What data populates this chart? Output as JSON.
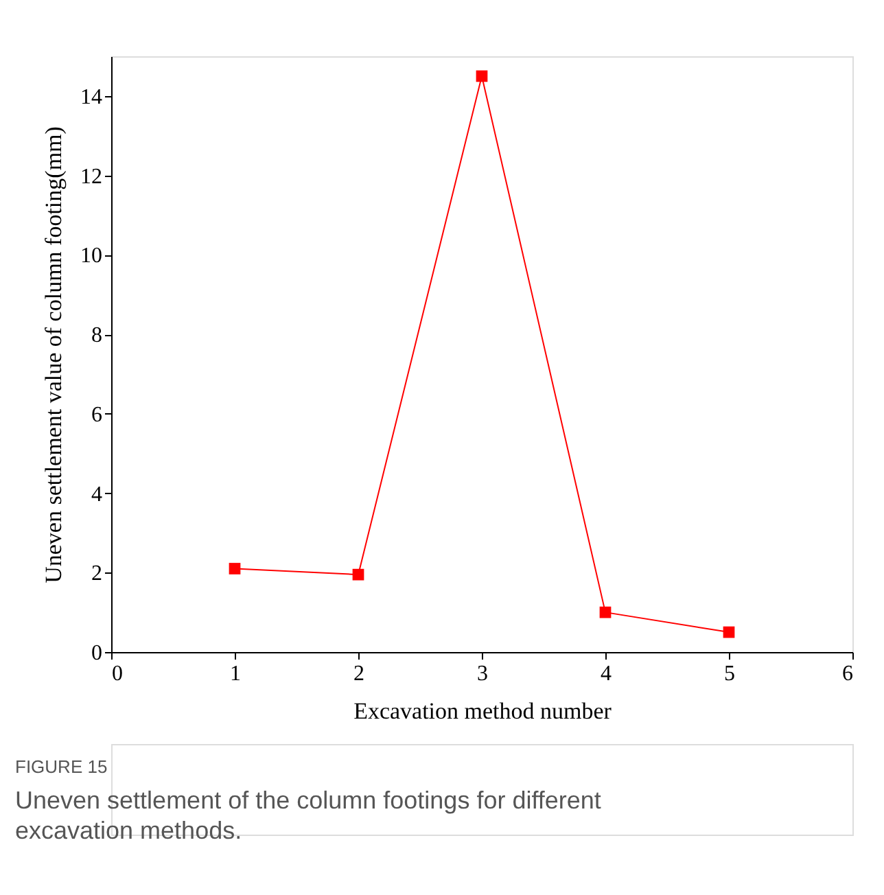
{
  "chart_data": {
    "type": "line",
    "xlabel": "Excavation method number",
    "ylabel": "Uneven settlement value of column footing(mm)",
    "x": [
      1,
      2,
      3,
      4,
      5
    ],
    "series": [
      {
        "color": "#ff0000",
        "values": [
          2.1,
          1.95,
          14.5,
          1.0,
          0.5
        ]
      }
    ],
    "xlim": [
      0,
      6
    ],
    "xticks": [
      0,
      1,
      2,
      3,
      4,
      5,
      6
    ],
    "ylim": [
      0,
      15
    ],
    "yticks": [
      0,
      2,
      4,
      6,
      8,
      10,
      12,
      14
    ],
    "marker": "square",
    "line_style": "solid",
    "grid": false,
    "legend": false,
    "annotations": [
      "FIGURE 15",
      "Uneven settlement of the column footings for different excavation methods."
    ]
  }
}
